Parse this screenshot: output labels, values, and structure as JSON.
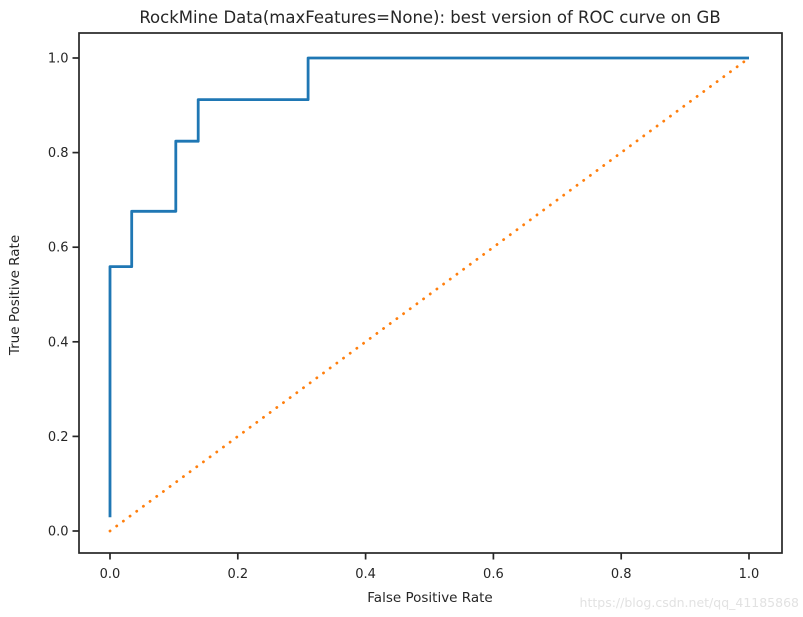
{
  "chart_data": {
    "type": "line",
    "title": "RockMine Data(maxFeatures=None): best version of ROC curve on GB",
    "xlabel": "False Positive Rate",
    "ylabel": "True Positive Rate",
    "xlim": [
      -0.05,
      1.05
    ],
    "ylim": [
      -0.05,
      1.05
    ],
    "grid": false,
    "legend": "none",
    "xticks": [
      "0.0",
      "0.2",
      "0.4",
      "0.6",
      "0.8",
      "1.0"
    ],
    "yticks": [
      "0.0",
      "0.2",
      "0.4",
      "0.6",
      "0.8",
      "1.0"
    ],
    "series": [
      {
        "name": "roc_curve_gb",
        "draw": "step-line",
        "color": "#1f77b4",
        "line_style": "solid",
        "line_width": 2.8,
        "points": [
          [
            0.0,
            0.029
          ],
          [
            0.0,
            0.559
          ],
          [
            0.034,
            0.559
          ],
          [
            0.034,
            0.676
          ],
          [
            0.103,
            0.676
          ],
          [
            0.103,
            0.824
          ],
          [
            0.138,
            0.824
          ],
          [
            0.138,
            0.912
          ],
          [
            0.31,
            0.912
          ],
          [
            0.31,
            1.0
          ],
          [
            1.0,
            1.0
          ]
        ]
      },
      {
        "name": "chance_diagonal",
        "draw": "line",
        "color": "#ff7f0e",
        "line_style": "dotted",
        "line_width": 2.8,
        "points": [
          [
            0.0,
            0.0
          ],
          [
            1.0,
            1.0
          ]
        ]
      }
    ]
  },
  "watermark": {
    "text": "https://blog.csdn.net/qq_41185868"
  },
  "colors": {
    "axis": "#262626",
    "text": "#1a1a1a",
    "roc_line": "#1f77b4",
    "chance_line": "#ff7f0e",
    "watermark": "#e2e2e2",
    "background": "#ffffff"
  }
}
